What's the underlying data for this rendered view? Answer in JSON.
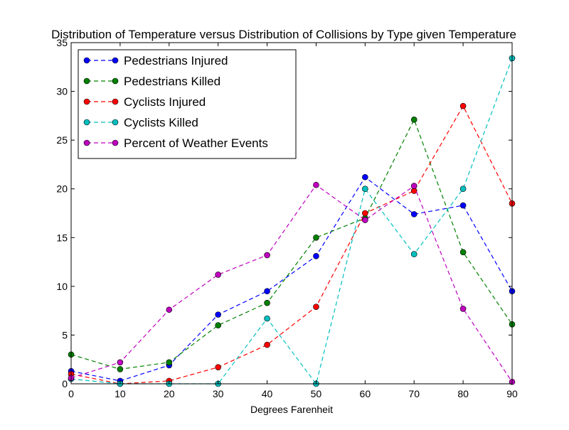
{
  "chart_data": {
    "type": "line",
    "title": "Distribution of Temperature versus Distribution of Collisions by Type given Temperature",
    "xlabel": "Degrees Farenheit",
    "ylabel": "",
    "x": [
      0,
      10,
      20,
      30,
      40,
      50,
      60,
      70,
      80,
      90
    ],
    "xlim": [
      0,
      90
    ],
    "ylim": [
      0,
      35
    ],
    "xticks": [
      "0",
      "10",
      "20",
      "30",
      "40",
      "50",
      "60",
      "70",
      "80",
      "90"
    ],
    "yticks": [
      "0",
      "5",
      "10",
      "15",
      "20",
      "25",
      "30",
      "35"
    ],
    "grid": false,
    "legend_position": "top-left",
    "series": [
      {
        "name": "Pedestrians Injured",
        "color": "#0000ff",
        "values": [
          1.3,
          0.3,
          1.9,
          7.1,
          9.5,
          13.1,
          21.2,
          17.4,
          18.3,
          9.5
        ]
      },
      {
        "name": "Pedestrians Killed",
        "color": "#008000",
        "values": [
          3.0,
          1.5,
          2.2,
          6.0,
          8.3,
          15.0,
          17.0,
          27.1,
          13.5,
          6.1
        ]
      },
      {
        "name": "Cyclists Injured",
        "color": "#ff0000",
        "values": [
          1.0,
          0.0,
          0.3,
          1.7,
          4.0,
          7.9,
          17.5,
          19.8,
          28.5,
          18.5
        ]
      },
      {
        "name": "Cyclists Killed",
        "color": "#00bfbf",
        "values": [
          0.5,
          0.0,
          0.0,
          0.0,
          6.7,
          0.0,
          20.0,
          13.3,
          20.0,
          33.4
        ]
      },
      {
        "name": "Percent of Weather Events",
        "color": "#bf00bf",
        "values": [
          0.6,
          2.2,
          7.6,
          11.2,
          13.2,
          20.4,
          16.8,
          20.3,
          7.7,
          0.2
        ]
      }
    ]
  }
}
